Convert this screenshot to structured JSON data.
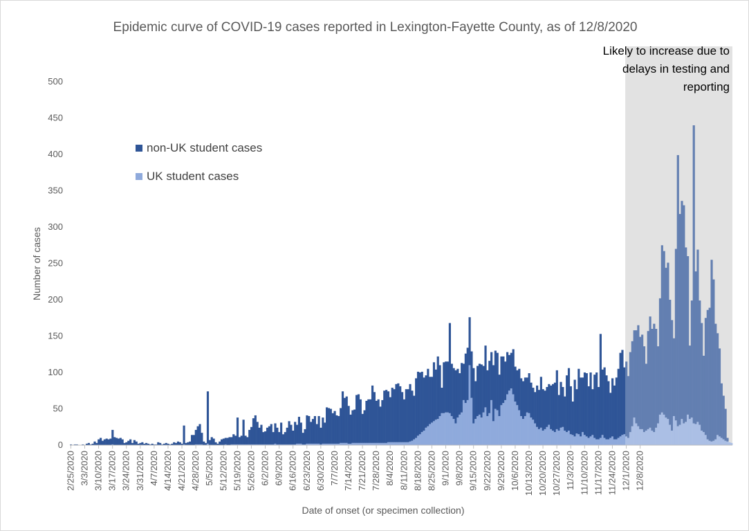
{
  "chart_data": {
    "type": "bar",
    "stacked": true,
    "title": "Epidemic curve of COVID-19 cases reported in Lexington-Fayette County, as of 12/8/2020",
    "xlabel": "Date of onset (or specimen collection)",
    "ylabel": "Number of cases",
    "ylim": [
      0,
      500
    ],
    "yticks": [
      0,
      50,
      100,
      150,
      200,
      250,
      300,
      350,
      400,
      450,
      500
    ],
    "x_start": "2/25/2020",
    "x_end": "12/8/2020",
    "xtick_labels": [
      "2/25/2020",
      "3/3/2020",
      "3/10/2020",
      "3/17/2020",
      "3/24/2020",
      "3/31/2020",
      "4/7/2020",
      "4/14/2020",
      "4/21/2020",
      "4/28/2020",
      "5/5/2020",
      "5/12/2020",
      "5/19/2020",
      "5/26/2020",
      "6/2/2020",
      "6/9/2020",
      "6/16/2020",
      "6/23/2020",
      "6/30/2020",
      "7/7/2020",
      "7/14/2020",
      "7/21/2020",
      "7/28/2020",
      "8/4/2020",
      "8/11/2020",
      "8/18/2020",
      "8/25/2020",
      "9/1/2020",
      "9/8/2020",
      "9/15/2020",
      "9/22/2020",
      "9/29/2020",
      "10/6/2020",
      "10/13/2020",
      "10/20/2020",
      "10/27/2020",
      "11/3/2020",
      "11/10/2020",
      "11/17/2020",
      "11/24/2020",
      "12/1/2020",
      "12/8/2020"
    ],
    "grid": false,
    "legend_position": "upper-left",
    "colors": {
      "non_uk": "#2f5597",
      "uk": "#8faadc",
      "shade": "#bfbfbf"
    },
    "series": [
      {
        "name": "non-UK student cases",
        "values": [
          1,
          0,
          1,
          1,
          0,
          0,
          1,
          0,
          2,
          3,
          1,
          2,
          5,
          3,
          8,
          10,
          6,
          8,
          9,
          8,
          9,
          20,
          11,
          10,
          9,
          10,
          8,
          3,
          4,
          6,
          8,
          3,
          7,
          5,
          2,
          3,
          4,
          2,
          3,
          2,
          1,
          2,
          1,
          1,
          4,
          3,
          1,
          2,
          3,
          2,
          1,
          2,
          4,
          3,
          5,
          4,
          2,
          26,
          3,
          4,
          5,
          14,
          14,
          20,
          25,
          28,
          16,
          5,
          3,
          72,
          7,
          11,
          9,
          4,
          2,
          5,
          8,
          9,
          9,
          10,
          11,
          10,
          14,
          12,
          37,
          10,
          12,
          34,
          12,
          10,
          20,
          24,
          36,
          40,
          31,
          23,
          27,
          17,
          18,
          23,
          25,
          28,
          17,
          28,
          23,
          17,
          30,
          14,
          17,
          23,
          32,
          27,
          19,
          31,
          26,
          37,
          29,
          16,
          21,
          39,
          38,
          30,
          34,
          38,
          27,
          38,
          23,
          36,
          29,
          50,
          49,
          48,
          42,
          45,
          39,
          38,
          48,
          71,
          62,
          64,
          52,
          40,
          45,
          46,
          66,
          67,
          60,
          40,
          45,
          58,
          60,
          60,
          79,
          70,
          58,
          60,
          50,
          59,
          72,
          73,
          70,
          62,
          75,
          73,
          80,
          81,
          77,
          69,
          59,
          73,
          73,
          79,
          69,
          60,
          82,
          88,
          85,
          83,
          73,
          72,
          79,
          65,
          63,
          81,
          69,
          86,
          70,
          35,
          70,
          70,
          70,
          124,
          72,
          70,
          73,
          67,
          57,
          68,
          50,
          68,
          72,
          66,
          64,
          76,
          52,
          69,
          70,
          73,
          64,
          85,
          63,
          72,
          66,
          77,
          80,
          79,
          57,
          67,
          64,
          53,
          58,
          49,
          49,
          62,
          48,
          48,
          57,
          52,
          52,
          53,
          48,
          55,
          48,
          44,
          43,
          57,
          54,
          70,
          57,
          53,
          55,
          56,
          60,
          64,
          68,
          81,
          49,
          63,
          55,
          47,
          78,
          86,
          66,
          46,
          78,
          61,
          90,
          81,
          75,
          86,
          87,
          71,
          88,
          63,
          87,
          92,
          72,
          143,
          90,
          97,
          88,
          80,
          62,
          80,
          74,
          85,
          95,
          115,
          117,
          92,
          103,
          85,
          110,
          117,
          120,
          128,
          139,
          127,
          130,
          118,
          92,
          135,
          153,
          140,
          149,
          136,
          106,
          160,
          230,
          225,
          206,
          215,
          172,
          152,
          107,
          236,
          373,
          290,
          300,
          300,
          240,
          218,
          101,
          161,
          410,
          210,
          237,
          171,
          148,
          105,
          161,
          178,
          183,
          250,
          222,
          159,
          140,
          121,
          75,
          60,
          44,
          5
        ]
      },
      {
        "name": "UK student cases",
        "values": [
          0,
          0,
          0,
          0,
          0,
          0,
          0,
          0,
          0,
          0,
          0,
          0,
          0,
          0,
          0,
          0,
          0,
          0,
          0,
          0,
          0,
          1,
          0,
          0,
          0,
          0,
          0,
          0,
          0,
          0,
          0,
          0,
          0,
          0,
          0,
          0,
          0,
          0,
          0,
          0,
          0,
          0,
          0,
          0,
          0,
          0,
          0,
          0,
          0,
          0,
          0,
          0,
          0,
          0,
          0,
          0,
          0,
          1,
          0,
          0,
          0,
          0,
          0,
          1,
          1,
          1,
          1,
          0,
          0,
          2,
          0,
          0,
          0,
          0,
          0,
          0,
          0,
          0,
          1,
          0,
          0,
          1,
          1,
          1,
          1,
          1,
          1,
          1,
          1,
          1,
          1,
          1,
          1,
          1,
          1,
          1,
          1,
          1,
          1,
          1,
          1,
          1,
          1,
          2,
          1,
          1,
          1,
          1,
          1,
          1,
          1,
          1,
          1,
          1,
          2,
          2,
          2,
          1,
          1,
          2,
          2,
          2,
          2,
          2,
          2,
          2,
          1,
          2,
          2,
          2,
          2,
          2,
          2,
          2,
          2,
          2,
          3,
          3,
          3,
          3,
          2,
          2,
          3,
          3,
          3,
          3,
          3,
          3,
          3,
          3,
          3,
          3,
          3,
          3,
          3,
          3,
          3,
          3,
          3,
          3,
          4,
          4,
          4,
          4,
          4,
          4,
          4,
          4,
          4,
          4,
          4,
          5,
          6,
          8,
          10,
          13,
          15,
          18,
          20,
          24,
          26,
          29,
          31,
          33,
          35,
          36,
          40,
          44,
          44,
          45,
          45,
          44,
          40,
          36,
          30,
          38,
          42,
          45,
          62,
          58,
          62,
          110,
          65,
          30,
          36,
          40,
          42,
          38,
          45,
          52,
          40,
          44,
          62,
          33,
          50,
          48,
          40,
          55,
          58,
          62,
          70,
          75,
          78,
          70,
          60,
          55,
          48,
          40,
          36,
          40,
          45,
          44,
          38,
          35,
          30,
          25,
          22,
          24,
          20,
          22,
          25,
          28,
          22,
          20,
          18,
          22,
          20,
          24,
          25,
          20,
          18,
          20,
          15,
          14,
          12,
          16,
          15,
          12,
          18,
          14,
          12,
          10,
          12,
          14,
          10,
          8,
          8,
          10,
          14,
          10,
          8,
          8,
          10,
          12,
          8,
          8,
          10,
          12,
          14,
          15,
          12,
          10,
          18,
          26,
          38,
          30,
          26,
          22,
          22,
          18,
          20,
          22,
          24,
          20,
          18,
          24,
          30,
          42,
          45,
          42,
          38,
          36,
          28,
          20,
          40,
          34,
          26,
          28,
          36,
          30,
          32,
          42,
          36,
          38,
          30,
          29,
          32,
          28,
          20,
          18,
          14,
          8,
          6,
          5,
          6,
          8,
          14,
          12,
          10,
          8,
          6,
          5,
          4,
          3
        ]
      }
    ],
    "annotation": [
      "Likely to increase due to",
      "delays in testing and",
      "reporting"
    ],
    "shaded_region_start": "12/1/2020"
  }
}
